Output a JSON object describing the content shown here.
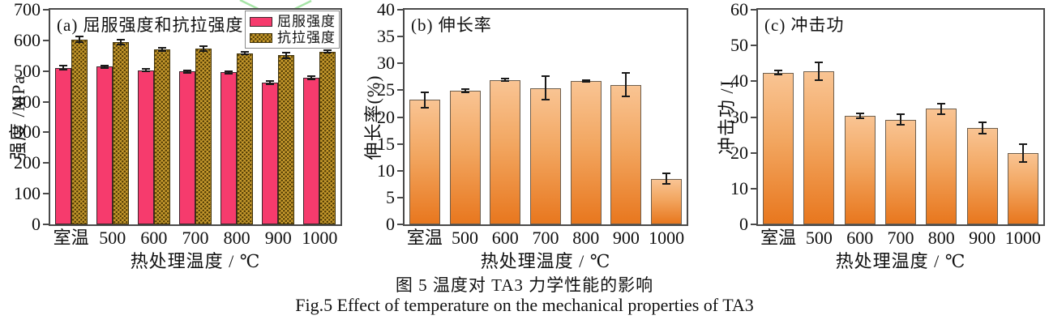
{
  "figure": {
    "caption_zh": "图 5  温度对 TA3 力学性能的影响",
    "caption_en": "Fig.5  Effect of temperature on the mechanical properties of TA3"
  },
  "colors": {
    "yield_pink": "#f63b6d",
    "tensile_gold_base": "#c6992d",
    "tensile_gold_dot": "#553f05",
    "orange_gradient_top": "#f9c493",
    "orange_gradient_bottom": "#e8771e",
    "axis": "#4a4a4a",
    "error_bar": "#1a1a1a",
    "watermark_green": "#98e098"
  },
  "chart_data": [
    {
      "key": "a",
      "type": "bar",
      "title": "(a) 屈服强度和抗拉强度",
      "ylabel": "强度 /MPa",
      "xlabel": "热处理温度 / ℃",
      "ylim": [
        0,
        700
      ],
      "yticks": [
        0,
        100,
        200,
        300,
        400,
        500,
        600,
        700
      ],
      "categories": [
        "室温",
        "500",
        "600",
        "700",
        "800",
        "900",
        "1000"
      ],
      "grid": false,
      "legend_position": "top-right",
      "series": [
        {
          "name": "屈服强度",
          "style": "solid-pink",
          "values": [
            511,
            514,
            503,
            498,
            496,
            462,
            478
          ],
          "errors": [
            6,
            5,
            4,
            4,
            4,
            6,
            5
          ]
        },
        {
          "name": "抗拉强度",
          "style": "checker-gold",
          "values": [
            603,
            594,
            570,
            572,
            558,
            551,
            563
          ],
          "errors": [
            9,
            8,
            6,
            8,
            4,
            9,
            4
          ]
        }
      ]
    },
    {
      "key": "b",
      "type": "bar",
      "title": "(b) 伸长率",
      "ylabel": "伸长率(%)",
      "xlabel": "热处理温度 / ℃",
      "ylim": [
        0,
        40
      ],
      "yticks": [
        0,
        5,
        10,
        15,
        20,
        25,
        30,
        35,
        40
      ],
      "categories": [
        "室温",
        "500",
        "600",
        "700",
        "800",
        "900",
        "1000"
      ],
      "grid": false,
      "series": [
        {
          "name": "伸长率",
          "style": "gradient-orange",
          "values": [
            23.2,
            24.9,
            26.9,
            25.4,
            26.7,
            26.0,
            8.5
          ],
          "errors": [
            1.4,
            0.3,
            0.2,
            2.2,
            0.2,
            2.2,
            1.0
          ]
        }
      ]
    },
    {
      "key": "c",
      "type": "bar",
      "title": "(c) 冲击功",
      "ylabel": "冲击功 /J",
      "xlabel": "热处理温度 / ℃",
      "ylim": [
        0,
        60
      ],
      "yticks": [
        0,
        10,
        20,
        30,
        40,
        50,
        60
      ],
      "categories": [
        "室温",
        "500",
        "600",
        "700",
        "800",
        "900",
        "1000"
      ],
      "grid": false,
      "series": [
        {
          "name": "冲击功",
          "style": "gradient-orange",
          "values": [
            42.4,
            42.8,
            30.3,
            29.3,
            32.3,
            27.0,
            20.0
          ],
          "errors": [
            0.6,
            2.4,
            0.7,
            1.5,
            1.5,
            1.6,
            2.5
          ]
        }
      ]
    }
  ]
}
